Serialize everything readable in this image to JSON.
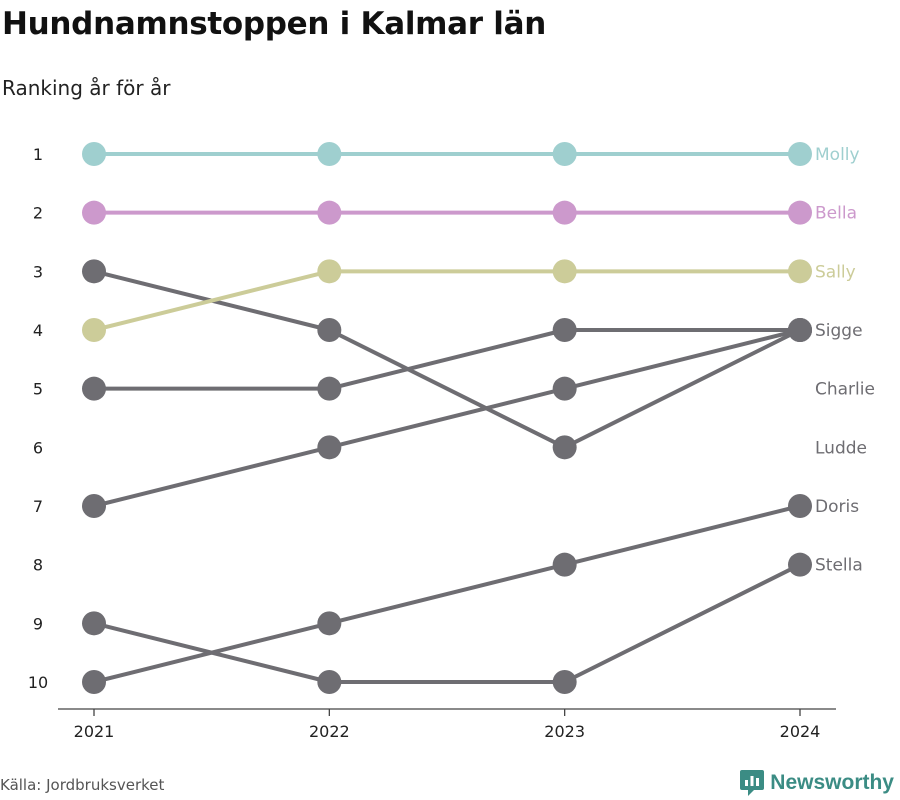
{
  "title": "Hundnamnstoppen i Kalmar län",
  "subtitle": "Ranking år för år",
  "source": "Källa: Jordbruksverket",
  "brand": {
    "name": "Newsworthy",
    "icon": "newsworthy-logo-icon",
    "color": "#3b8c84"
  },
  "chart_data": {
    "type": "line",
    "x": [
      "2021",
      "2022",
      "2023",
      "2024"
    ],
    "y_ticks": [
      "1",
      "2",
      "3",
      "4",
      "5",
      "6",
      "7",
      "8",
      "9",
      "10"
    ],
    "ylim": [
      1,
      10
    ],
    "y_inverted": true,
    "series": [
      {
        "name": "Molly",
        "color": "#9fcfcf",
        "values": [
          1,
          1,
          1,
          1
        ]
      },
      {
        "name": "Bella",
        "color": "#cc99cc",
        "values": [
          2,
          2,
          2,
          2
        ]
      },
      {
        "name": "Sally",
        "color": "#cccc99",
        "values": [
          4,
          3,
          3,
          3
        ]
      },
      {
        "name": "Sigge",
        "color": "#6e6d72",
        "values": [
          5,
          5,
          4,
          4
        ]
      },
      {
        "name": "Charlie",
        "color": "#6e6d72",
        "values": [
          3,
          4,
          6,
          4
        ]
      },
      {
        "name": "Ludde",
        "color": "#6e6d72",
        "values": [
          7,
          6,
          5,
          4
        ]
      },
      {
        "name": "Doris",
        "color": "#6e6d72",
        "values": [
          10,
          9,
          8,
          7
        ]
      },
      {
        "name": "Stella",
        "color": "#6e6d72",
        "values": [
          9,
          10,
          10,
          8
        ]
      }
    ],
    "label_slots": [
      1,
      2,
      3,
      4,
      5,
      6,
      7,
      8
    ]
  }
}
